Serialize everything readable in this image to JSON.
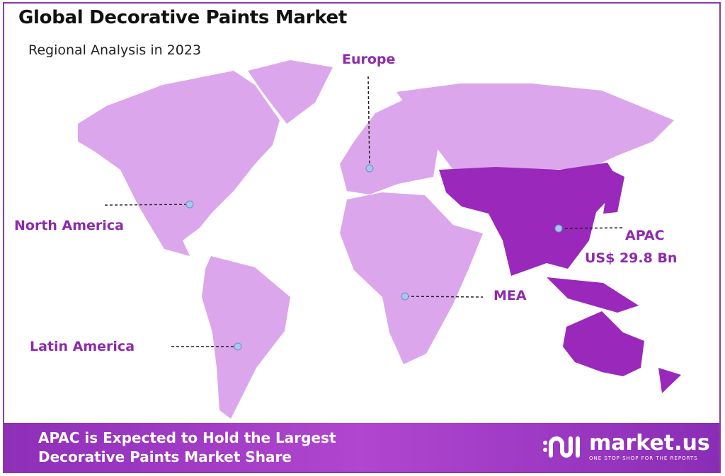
{
  "header": {
    "title": "Global Decorative Paints Market",
    "subtitle": "Regional Analysis in 2023"
  },
  "map": {
    "colors": {
      "base_region": "#dca6ec",
      "highlight_region": "#9a28bb",
      "label": "#8e2aac",
      "marker": "#a9c6ee"
    },
    "highlighted_region": "APAC",
    "regions": [
      {
        "label": "Europe"
      },
      {
        "label": "North America"
      },
      {
        "label": "Latin America"
      },
      {
        "label": "MEA"
      },
      {
        "label": "APAC",
        "value": "US$ 29.8  Bn"
      }
    ]
  },
  "footer": {
    "line1": "APAC is Expected to Hold the Largest",
    "line2": "Decorative Paints Market Share",
    "logo_name": "market.us",
    "logo_tagline": "ONE STOP SHOP FOR THE REPORTS"
  }
}
